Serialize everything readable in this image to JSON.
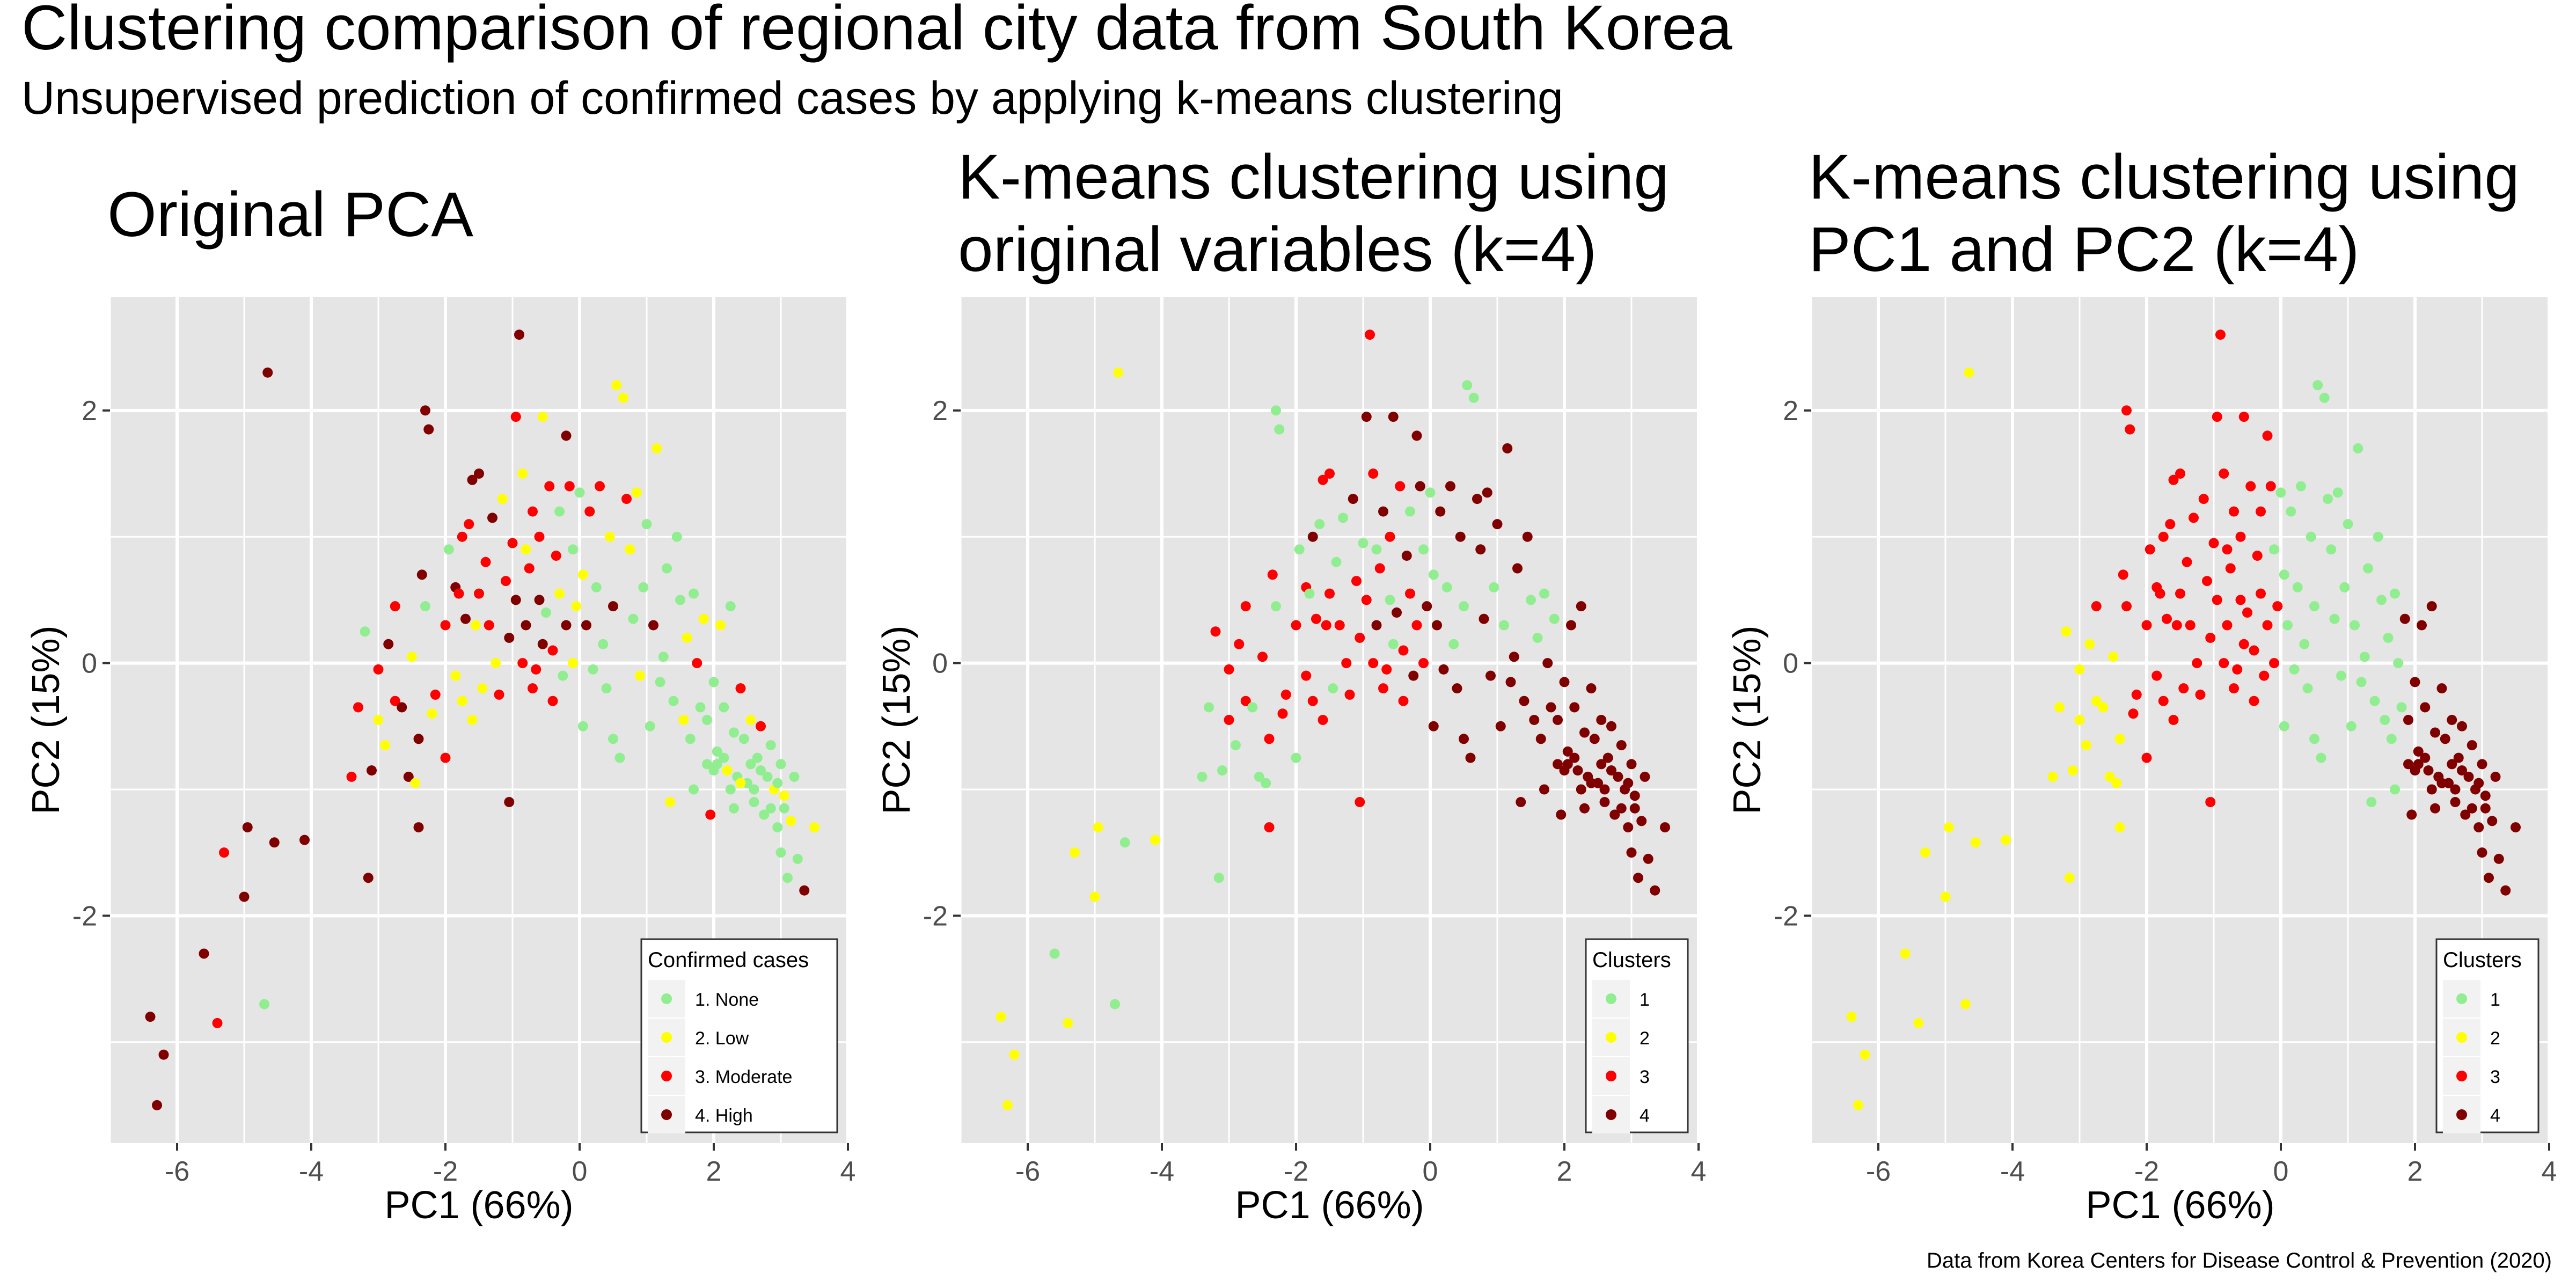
{
  "title": "Clustering comparison of regional city data from South Korea",
  "subtitle": "Unsupervised prediction of confirmed cases by applying k-means clustering",
  "caption": "Data from Korea Centers for Disease Control & Prevention (2020)",
  "colors": {
    "panel_bg": "#e5e5e5",
    "grid": "#ffffff",
    "c1": "#90ee90",
    "c2": "#ffff00",
    "c3": "#ff0000",
    "c4": "#800000"
  },
  "chart_data": [
    {
      "type": "scatter",
      "title": [
        "Original PCA"
      ],
      "xlabel": "PC1 (66%)",
      "ylabel": "PC2 (15%)",
      "xlim": [
        -7,
        4
      ],
      "ylim": [
        -3.8,
        2.9
      ],
      "xticks": [
        -6,
        -4,
        -2,
        0,
        2,
        4
      ],
      "yticks": [
        -2,
        0,
        2
      ],
      "legend_title": "Confirmed cases",
      "legend_position": "bottom-right",
      "legend_labels": [
        "1. None",
        "2. Low",
        "3. Moderate",
        "4. High"
      ],
      "grid": true,
      "points": []
    },
    {
      "type": "scatter",
      "title": [
        "K-means clustering using",
        "original variables (k=4)"
      ],
      "xlabel": "PC1 (66%)",
      "ylabel": "PC2 (15%)",
      "xlim": [
        -7,
        4
      ],
      "ylim": [
        -3.8,
        2.9
      ],
      "xticks": [
        -6,
        -4,
        -2,
        0,
        2,
        4
      ],
      "yticks": [
        -2,
        0,
        2
      ],
      "legend_title": "Clusters",
      "legend_position": "bottom-right",
      "legend_labels": [
        "1",
        "2",
        "3",
        "4"
      ],
      "grid": true,
      "points": []
    },
    {
      "type": "scatter",
      "title": [
        "K-means clustering using",
        "PC1 and PC2 (k=4)"
      ],
      "xlabel": "PC1 (66%)",
      "ylabel": "PC2 (15%)",
      "xlim": [
        -7,
        4
      ],
      "ylim": [
        -3.8,
        2.9
      ],
      "xticks": [
        -6,
        -4,
        -2,
        0,
        2,
        4
      ],
      "yticks": [
        -2,
        0,
        2
      ],
      "legend_title": "Clusters",
      "legend_position": "bottom-right",
      "legend_labels": [
        "1",
        "2",
        "3",
        "4"
      ],
      "grid": true,
      "points": []
    }
  ],
  "observations": [
    [
      -6.4,
      -2.8,
      4,
      2,
      2
    ],
    [
      -6.3,
      -3.5,
      4,
      2,
      2
    ],
    [
      -6.2,
      -3.1,
      4,
      2,
      2
    ],
    [
      -5.6,
      -2.3,
      4,
      1,
      2
    ],
    [
      -5.4,
      -2.85,
      3,
      2,
      2
    ],
    [
      -5.3,
      -1.5,
      3,
      2,
      2
    ],
    [
      -5.0,
      -1.85,
      4,
      2,
      2
    ],
    [
      -4.95,
      -1.3,
      4,
      2,
      2
    ],
    [
      -4.7,
      -2.7,
      1,
      1,
      2
    ],
    [
      -4.65,
      2.3,
      4,
      2,
      2
    ],
    [
      -4.55,
      -1.42,
      4,
      1,
      2
    ],
    [
      -4.1,
      -1.4,
      4,
      2,
      2
    ],
    [
      -3.4,
      -0.9,
      3,
      1,
      2
    ],
    [
      -3.3,
      -0.35,
      3,
      1,
      2
    ],
    [
      -3.2,
      0.25,
      1,
      3,
      2
    ],
    [
      -3.15,
      -1.7,
      4,
      1,
      2
    ],
    [
      -3.1,
      -0.85,
      4,
      1,
      2
    ],
    [
      -3.0,
      -0.45,
      2,
      3,
      2
    ],
    [
      -3.0,
      -0.05,
      3,
      3,
      2
    ],
    [
      -2.9,
      -0.65,
      2,
      1,
      2
    ],
    [
      -2.85,
      0.15,
      4,
      3,
      2
    ],
    [
      -2.75,
      -0.3,
      3,
      3,
      2
    ],
    [
      -2.75,
      0.45,
      3,
      3,
      3
    ],
    [
      -2.65,
      -0.35,
      4,
      1,
      2
    ],
    [
      -2.55,
      -0.9,
      4,
      1,
      2
    ],
    [
      -2.5,
      0.05,
      2,
      3,
      2
    ],
    [
      -2.45,
      -0.95,
      2,
      1,
      2
    ],
    [
      -2.4,
      -1.3,
      4,
      3,
      2
    ],
    [
      -2.4,
      -0.6,
      4,
      3,
      2
    ],
    [
      -2.35,
      0.7,
      4,
      3,
      3
    ],
    [
      -2.3,
      2.0,
      4,
      1,
      3
    ],
    [
      -2.3,
      0.45,
      1,
      1,
      3
    ],
    [
      -2.25,
      1.85,
      4,
      1,
      3
    ],
    [
      -2.2,
      -0.4,
      2,
      3,
      3
    ],
    [
      -2.15,
      -0.25,
      3,
      3,
      3
    ],
    [
      -2.0,
      -0.75,
      3,
      1,
      3
    ],
    [
      -2.0,
      0.3,
      3,
      3,
      3
    ],
    [
      -1.95,
      0.9,
      1,
      1,
      3
    ],
    [
      -1.85,
      0.6,
      4,
      3,
      3
    ],
    [
      -1.85,
      -0.1,
      2,
      3,
      3
    ],
    [
      -1.8,
      0.55,
      3,
      1,
      3
    ],
    [
      -1.75,
      -0.3,
      2,
      3,
      3
    ],
    [
      -1.75,
      1.0,
      3,
      4,
      3
    ],
    [
      -1.7,
      0.35,
      4,
      3,
      3
    ],
    [
      -1.65,
      1.1,
      3,
      1,
      3
    ],
    [
      -1.6,
      -0.45,
      2,
      3,
      3
    ],
    [
      -1.6,
      1.45,
      4,
      3,
      3
    ],
    [
      -1.55,
      0.3,
      2,
      3,
      3
    ],
    [
      -1.5,
      1.5,
      4,
      3,
      3
    ],
    [
      -1.5,
      0.55,
      3,
      3,
      3
    ],
    [
      -1.45,
      -0.2,
      2,
      1,
      3
    ],
    [
      -1.4,
      0.8,
      3,
      1,
      3
    ],
    [
      -1.35,
      0.3,
      3,
      3,
      3
    ],
    [
      -1.3,
      1.15,
      4,
      1,
      3
    ],
    [
      -1.25,
      0.0,
      2,
      3,
      3
    ],
    [
      -1.2,
      -0.25,
      3,
      3,
      3
    ],
    [
      -1.15,
      1.3,
      2,
      4,
      3
    ],
    [
      -1.1,
      0.65,
      3,
      3,
      3
    ],
    [
      -1.05,
      -1.1,
      4,
      3,
      3
    ],
    [
      -1.05,
      0.2,
      4,
      3,
      3
    ],
    [
      -1.0,
      0.95,
      3,
      1,
      3
    ],
    [
      -0.95,
      1.95,
      3,
      4,
      3
    ],
    [
      -0.95,
      0.5,
      4,
      3,
      3
    ],
    [
      -0.9,
      2.6,
      4,
      3,
      3
    ],
    [
      -0.85,
      0.0,
      3,
      3,
      3
    ],
    [
      -0.85,
      1.5,
      2,
      3,
      3
    ],
    [
      -0.8,
      0.9,
      2,
      1,
      3
    ],
    [
      -0.8,
      0.3,
      4,
      4,
      3
    ],
    [
      -0.75,
      0.75,
      3,
      3,
      3
    ],
    [
      -0.7,
      1.2,
      3,
      4,
      3
    ],
    [
      -0.7,
      -0.2,
      3,
      3,
      3
    ],
    [
      -0.65,
      -0.05,
      3,
      3,
      3
    ],
    [
      -0.6,
      0.5,
      4,
      1,
      3
    ],
    [
      -0.6,
      1.0,
      3,
      3,
      3
    ],
    [
      -0.55,
      1.95,
      2,
      4,
      3
    ],
    [
      -0.55,
      0.15,
      4,
      1,
      3
    ],
    [
      -0.5,
      0.4,
      1,
      4,
      3
    ],
    [
      -0.45,
      1.4,
      3,
      3,
      3
    ],
    [
      -0.4,
      0.1,
      3,
      3,
      3
    ],
    [
      -0.4,
      -0.3,
      3,
      3,
      3
    ],
    [
      -0.35,
      0.85,
      3,
      4,
      3
    ],
    [
      -0.3,
      1.2,
      1,
      1,
      3
    ],
    [
      -0.3,
      0.55,
      2,
      3,
      3
    ],
    [
      -0.25,
      -0.1,
      1,
      4,
      3
    ],
    [
      -0.2,
      0.3,
      4,
      3,
      3
    ],
    [
      -0.2,
      1.8,
      4,
      4,
      3
    ],
    [
      -0.15,
      1.4,
      3,
      4,
      3
    ],
    [
      -0.1,
      0.0,
      2,
      3,
      3
    ],
    [
      -0.1,
      0.9,
      1,
      1,
      1
    ],
    [
      -0.05,
      0.45,
      2,
      4,
      3
    ],
    [
      0.0,
      1.35,
      1,
      1,
      1
    ],
    [
      0.05,
      0.7,
      2,
      1,
      1
    ],
    [
      0.05,
      -0.5,
      1,
      4,
      1
    ],
    [
      0.1,
      0.3,
      4,
      4,
      1
    ],
    [
      0.15,
      1.2,
      3,
      4,
      1
    ],
    [
      0.2,
      -0.05,
      1,
      4,
      1
    ],
    [
      0.25,
      0.6,
      1,
      1,
      1
    ],
    [
      0.3,
      1.4,
      3,
      4,
      1
    ],
    [
      0.35,
      0.15,
      1,
      1,
      1
    ],
    [
      0.4,
      -0.2,
      1,
      4,
      1
    ],
    [
      0.45,
      1.0,
      2,
      4,
      1
    ],
    [
      0.5,
      -0.6,
      1,
      4,
      1
    ],
    [
      0.5,
      0.45,
      4,
      1,
      1
    ],
    [
      0.55,
      2.2,
      2,
      1,
      1
    ],
    [
      0.6,
      -0.75,
      1,
      4,
      1
    ],
    [
      0.65,
      2.1,
      2,
      1,
      1
    ],
    [
      0.7,
      1.3,
      3,
      4,
      1
    ],
    [
      0.75,
      0.9,
      2,
      4,
      1
    ],
    [
      0.8,
      0.35,
      1,
      4,
      1
    ],
    [
      0.85,
      1.35,
      2,
      4,
      1
    ],
    [
      0.9,
      -0.1,
      2,
      4,
      1
    ],
    [
      0.95,
      0.6,
      1,
      1,
      1
    ],
    [
      1.0,
      1.1,
      1,
      4,
      1
    ],
    [
      1.05,
      -0.5,
      1,
      4,
      1
    ],
    [
      1.1,
      0.3,
      4,
      1,
      1
    ],
    [
      1.15,
      1.7,
      2,
      4,
      1
    ],
    [
      1.2,
      -0.15,
      1,
      4,
      1
    ],
    [
      1.25,
      0.05,
      1,
      4,
      1
    ],
    [
      1.3,
      0.75,
      1,
      4,
      1
    ],
    [
      1.35,
      -1.1,
      2,
      4,
      1
    ],
    [
      1.4,
      -0.3,
      1,
      4,
      1
    ],
    [
      1.45,
      1.0,
      1,
      4,
      1
    ],
    [
      1.5,
      0.5,
      1,
      1,
      1
    ],
    [
      1.55,
      -0.45,
      2,
      4,
      1
    ],
    [
      1.6,
      0.2,
      2,
      1,
      1
    ],
    [
      1.65,
      -0.6,
      1,
      4,
      1
    ],
    [
      1.7,
      -1.0,
      1,
      4,
      1
    ],
    [
      1.7,
      0.55,
      1,
      1,
      1
    ],
    [
      1.75,
      0.0,
      3,
      4,
      1
    ],
    [
      1.8,
      -0.35,
      1,
      4,
      1
    ],
    [
      1.85,
      0.35,
      2,
      1,
      4
    ],
    [
      1.9,
      -0.45,
      1,
      4,
      4
    ],
    [
      1.95,
      -1.2,
      3,
      4,
      4
    ],
    [
      2.0,
      -0.15,
      1,
      4,
      4
    ],
    [
      2.05,
      -0.7,
      1,
      4,
      4
    ],
    [
      2.1,
      0.3,
      2,
      4,
      4
    ],
    [
      2.15,
      -0.35,
      1,
      4,
      4
    ],
    [
      2.2,
      -0.85,
      2,
      4,
      4
    ],
    [
      2.25,
      0.45,
      1,
      4,
      4
    ],
    [
      2.3,
      -0.55,
      1,
      4,
      4
    ],
    [
      2.35,
      -0.9,
      1,
      4,
      4
    ],
    [
      2.4,
      -0.2,
      3,
      4,
      4
    ],
    [
      2.45,
      -0.6,
      1,
      4,
      4
    ],
    [
      2.5,
      -0.95,
      1,
      4,
      4
    ],
    [
      2.55,
      -0.45,
      2,
      4,
      4
    ],
    [
      2.6,
      -1.1,
      1,
      4,
      4
    ],
    [
      2.65,
      -0.75,
      1,
      4,
      4
    ],
    [
      2.7,
      -0.5,
      3,
      4,
      4
    ],
    [
      2.75,
      -1.2,
      1,
      4,
      4
    ],
    [
      2.8,
      -0.9,
      1,
      4,
      4
    ],
    [
      2.85,
      -0.65,
      1,
      4,
      4
    ],
    [
      2.9,
      -1.0,
      2,
      4,
      4
    ],
    [
      2.95,
      -1.3,
      1,
      4,
      4
    ],
    [
      3.0,
      -0.8,
      1,
      4,
      4
    ],
    [
      3.0,
      -1.5,
      1,
      4,
      4
    ],
    [
      3.05,
      -1.05,
      2,
      4,
      4
    ],
    [
      3.1,
      -1.7,
      1,
      4,
      4
    ],
    [
      3.15,
      -1.25,
      2,
      4,
      4
    ],
    [
      3.2,
      -0.9,
      1,
      4,
      4
    ],
    [
      3.25,
      -1.55,
      1,
      4,
      4
    ],
    [
      3.35,
      -1.8,
      4,
      4,
      4
    ],
    [
      3.5,
      -1.3,
      2,
      4,
      4
    ],
    [
      2.0,
      -0.85,
      1,
      4,
      4
    ],
    [
      1.9,
      -0.8,
      1,
      4,
      4
    ],
    [
      2.15,
      -0.75,
      1,
      4,
      4
    ],
    [
      2.25,
      -1.0,
      1,
      4,
      4
    ],
    [
      2.4,
      -0.95,
      2,
      4,
      4
    ],
    [
      2.6,
      -1.0,
      1,
      4,
      4
    ],
    [
      2.7,
      -0.85,
      1,
      4,
      4
    ],
    [
      2.85,
      -1.15,
      1,
      4,
      4
    ],
    [
      2.95,
      -0.95,
      1,
      4,
      4
    ],
    [
      3.05,
      -1.15,
      1,
      4,
      4
    ],
    [
      2.55,
      -0.8,
      1,
      4,
      4
    ],
    [
      2.3,
      -1.15,
      1,
      4,
      4
    ],
    [
      2.05,
      -0.8,
      1,
      4,
      4
    ]
  ]
}
